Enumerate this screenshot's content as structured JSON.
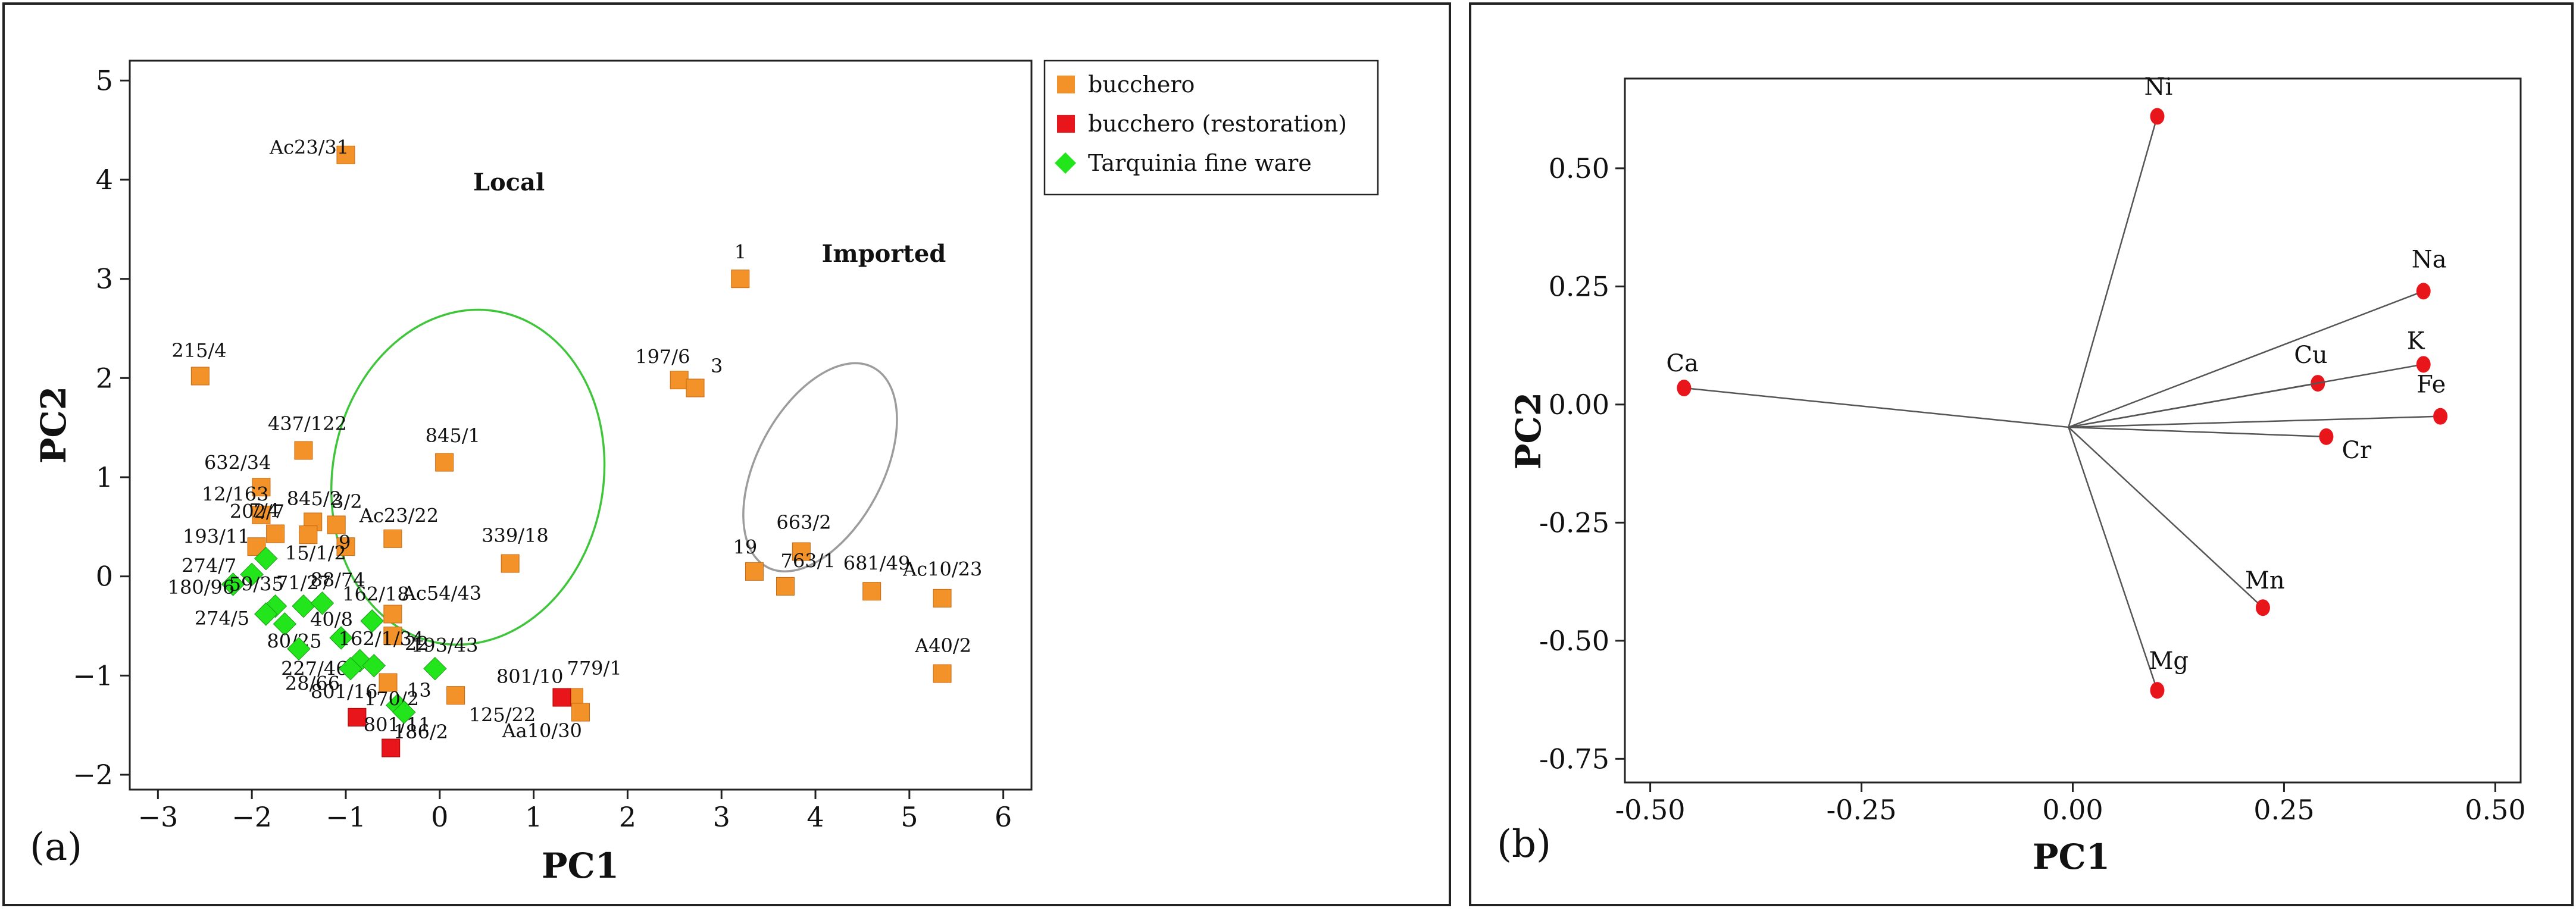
{
  "chart_data": [
    {
      "type": "scatter",
      "panel_label": "(a)",
      "xlabel": "PC1",
      "ylabel": "PC2",
      "xlim": [
        -3.3,
        6.3
      ],
      "ylim": [
        -2.15,
        5.2
      ],
      "xticks": [
        -3,
        -2,
        -1,
        0,
        1,
        2,
        3,
        4,
        5,
        6
      ],
      "yticks": [
        -2,
        -1,
        0,
        1,
        2,
        3,
        4,
        5
      ],
      "legend": [
        {
          "label": "bucchero",
          "color": "#F39228",
          "marker": "square"
        },
        {
          "label": "bucchero (restoration)",
          "color": "#E8161B",
          "marker": "square"
        },
        {
          "label": "Tarquinia fine ware",
          "color": "#22E51C",
          "marker": "diamond"
        }
      ],
      "groups": [
        {
          "label": "Local",
          "color": "#3FC53A",
          "center": [
            0.3,
            1.0
          ],
          "radii": [
            2.8,
            3.5
          ],
          "angle": 10
        },
        {
          "label": "Imported",
          "color": "#9C9C9C",
          "center": [
            4.05,
            1.1
          ],
          "radii": [
            1.3,
            2.35
          ],
          "angle": 28
        }
      ],
      "points": [
        {
          "x": -1.0,
          "y": 4.25,
          "label": "Ac23/31",
          "series": 0
        },
        {
          "x": -2.55,
          "y": 2.02,
          "label": "215/4",
          "series": 0
        },
        {
          "x": -1.45,
          "y": 1.27,
          "label": "437/122",
          "series": 0
        },
        {
          "x": 0.05,
          "y": 1.15,
          "label": "845/1",
          "series": 0
        },
        {
          "x": -1.9,
          "y": 0.9,
          "label": "632/34",
          "series": 0
        },
        {
          "x": -1.9,
          "y": 0.62,
          "label": "12/163",
          "series": 0
        },
        {
          "x": -1.35,
          "y": 0.55,
          "label": "845/2",
          "series": 0
        },
        {
          "x": -1.1,
          "y": 0.52,
          "label": "3/2",
          "series": 0
        },
        {
          "x": -1.75,
          "y": 0.43,
          "label": "7/4",
          "series": 0
        },
        {
          "x": -1.4,
          "y": 0.42,
          "label": "202/7",
          "series": 0
        },
        {
          "x": -1.0,
          "y": 0.3,
          "label": "9",
          "series": 0
        },
        {
          "x": -0.5,
          "y": 0.38,
          "label": "Ac23/22",
          "series": 0
        },
        {
          "x": -1.95,
          "y": 0.3,
          "label": "193/11",
          "series": 0
        },
        {
          "x": 0.75,
          "y": 0.13,
          "label": "339/18",
          "series": 0
        },
        {
          "x": -0.5,
          "y": -0.38,
          "label": "Ac54/43",
          "series": 0
        },
        {
          "x": -0.5,
          "y": -0.6,
          "label": "22",
          "series": 0
        },
        {
          "x": -0.55,
          "y": -1.07,
          "label": "13",
          "series": 0
        },
        {
          "x": 0.17,
          "y": -1.2,
          "label": "125/22",
          "series": 0
        },
        {
          "x": 1.43,
          "y": -1.22,
          "label": "779/1",
          "series": 0
        },
        {
          "x": 1.5,
          "y": -1.37,
          "label": "Aa10/30",
          "series": 0
        },
        {
          "x": 3.2,
          "y": 3.0,
          "label": "1",
          "series": 0
        },
        {
          "x": 2.55,
          "y": 1.98,
          "label": "197/6",
          "series": 0
        },
        {
          "x": 2.72,
          "y": 1.9,
          "label": "3",
          "series": 0
        },
        {
          "x": 3.85,
          "y": 0.25,
          "label": "663/2",
          "series": 0
        },
        {
          "x": 3.35,
          "y": 0.05,
          "label": "19",
          "series": 0
        },
        {
          "x": 3.68,
          "y": -0.1,
          "label": "763/1",
          "series": 0
        },
        {
          "x": 4.6,
          "y": -0.15,
          "label": "681/49",
          "series": 0
        },
        {
          "x": 5.35,
          "y": -0.22,
          "label": "Ac10/23",
          "series": 0
        },
        {
          "x": 5.35,
          "y": -0.98,
          "label": "A40/2",
          "series": 0
        },
        {
          "x": 1.3,
          "y": -1.22,
          "label": "801/10",
          "series": 1
        },
        {
          "x": -0.88,
          "y": -1.42,
          "label": "801/16",
          "series": 1
        },
        {
          "x": -0.52,
          "y": -1.73,
          "label": "801/11",
          "series": 1
        },
        {
          "x": -1.85,
          "y": 0.18,
          "label": "15/1/2",
          "series": 2
        },
        {
          "x": -2.2,
          "y": -0.08,
          "label": "180/96",
          "series": 2
        },
        {
          "x": -2.0,
          "y": 0.02,
          "label": "274/7",
          "series": 2
        },
        {
          "x": -1.75,
          "y": -0.3,
          "label": "59/35",
          "series": 2
        },
        {
          "x": -1.85,
          "y": -0.38,
          "label": "274/5",
          "series": 2
        },
        {
          "x": -1.45,
          "y": -0.3,
          "label": "71/27",
          "series": 2
        },
        {
          "x": -1.25,
          "y": -0.27,
          "label": "88/74",
          "series": 2
        },
        {
          "x": -1.65,
          "y": -0.48,
          "label": "80/25",
          "series": 2
        },
        {
          "x": -0.72,
          "y": -0.45,
          "label": "162/18",
          "series": 2
        },
        {
          "x": -1.05,
          "y": -0.62,
          "label": "40/8",
          "series": 2
        },
        {
          "x": -1.5,
          "y": -0.73,
          "label": "227/46",
          "series": 2
        },
        {
          "x": -0.85,
          "y": -0.85,
          "label": "162/1/34",
          "series": 2
        },
        {
          "x": -0.95,
          "y": -0.93,
          "label": "28/66",
          "series": 2
        },
        {
          "x": -0.7,
          "y": -0.9,
          "label": "",
          "series": 2
        },
        {
          "x": -0.05,
          "y": -0.93,
          "label": "193/43",
          "series": 2
        },
        {
          "x": -0.45,
          "y": -1.3,
          "label": "170/2",
          "series": 2
        },
        {
          "x": -0.38,
          "y": -1.37,
          "label": "186/2",
          "series": 2
        }
      ]
    },
    {
      "type": "biplot",
      "panel_label": "(b)",
      "xlabel": "PC1",
      "ylabel": "PC2",
      "xlim": [
        -0.53,
        0.53
      ],
      "ylim": [
        -0.8,
        0.69
      ],
      "xticks": [
        -0.5,
        -0.25,
        0.0,
        0.25,
        0.5
      ],
      "xtick_labels": [
        "-0.50",
        "-0.25",
        "0.00",
        "0.25",
        "0.50"
      ],
      "yticks": [
        -0.75,
        -0.5,
        -0.25,
        0.0,
        0.25,
        0.5
      ],
      "ytick_labels": [
        "-0.75",
        "-0.50",
        "-0.25",
        "0.00",
        "0.25",
        "0.50"
      ],
      "origin": [
        -0.005,
        -0.048
      ],
      "marker_color": "#E8161B",
      "vectors": [
        {
          "label": "Ni",
          "x": 0.1,
          "y": 0.61
        },
        {
          "label": "Na",
          "x": 0.415,
          "y": 0.24
        },
        {
          "label": "Cu",
          "x": 0.29,
          "y": 0.045
        },
        {
          "label": "K",
          "x": 0.415,
          "y": 0.085
        },
        {
          "label": "Fe",
          "x": 0.435,
          "y": -0.025
        },
        {
          "label": "Cr",
          "x": 0.3,
          "y": -0.068
        },
        {
          "label": "Ca",
          "x": -0.46,
          "y": 0.035
        },
        {
          "label": "Mn",
          "x": 0.225,
          "y": -0.43
        },
        {
          "label": "Mg",
          "x": 0.1,
          "y": -0.605
        }
      ]
    }
  ]
}
